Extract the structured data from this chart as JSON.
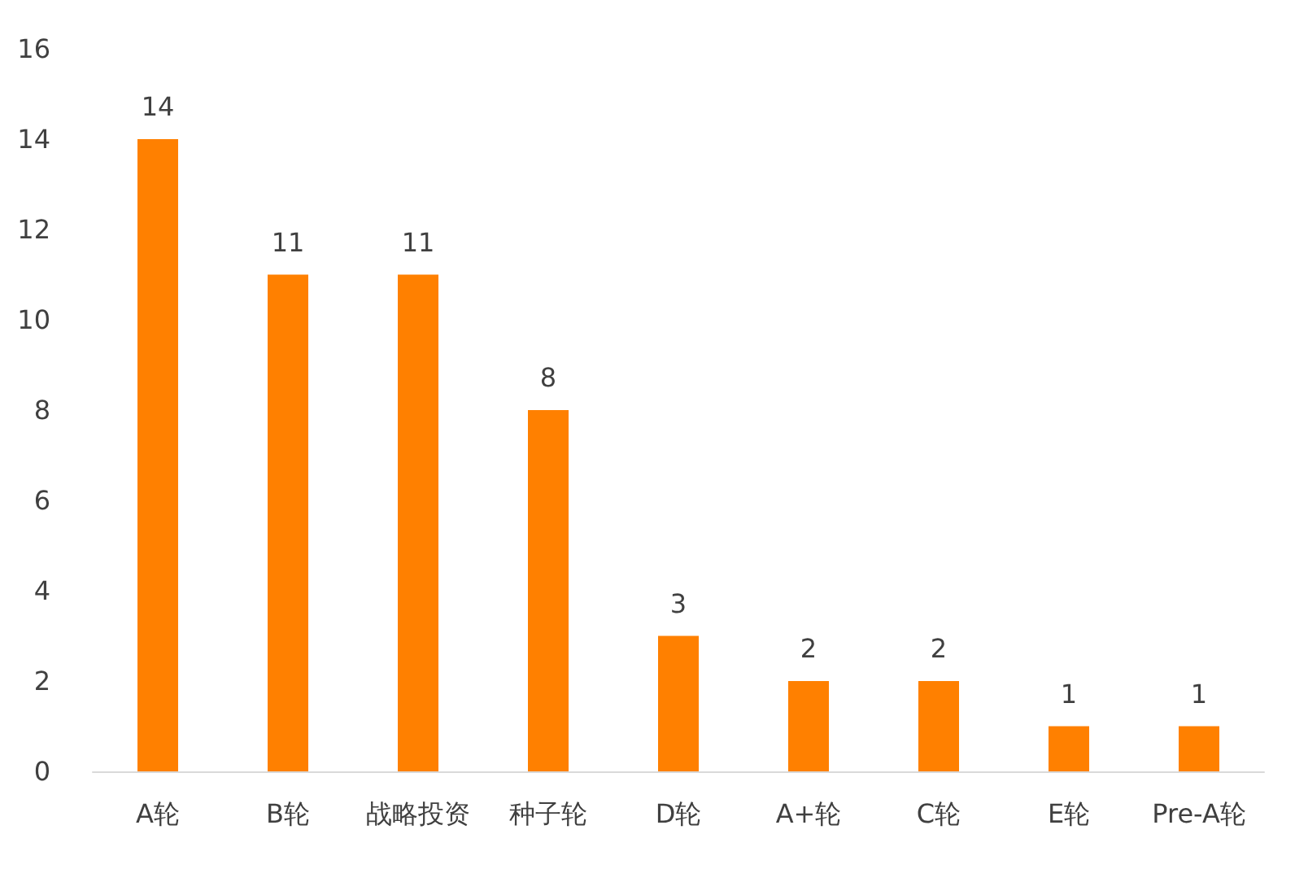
{
  "chart_data": {
    "type": "bar",
    "categories": [
      "A轮",
      "B轮",
      "战略投资",
      "种子轮",
      "D轮",
      "A+轮",
      "C轮",
      "E轮",
      "Pre-A轮"
    ],
    "values": [
      14,
      11,
      11,
      8,
      3,
      2,
      2,
      1,
      1
    ],
    "color": "#ff8000",
    "ylim": [
      0,
      16
    ],
    "yticks": [
      0,
      2,
      4,
      6,
      8,
      10,
      12,
      14,
      16
    ],
    "grid": false,
    "data_labels": true
  }
}
